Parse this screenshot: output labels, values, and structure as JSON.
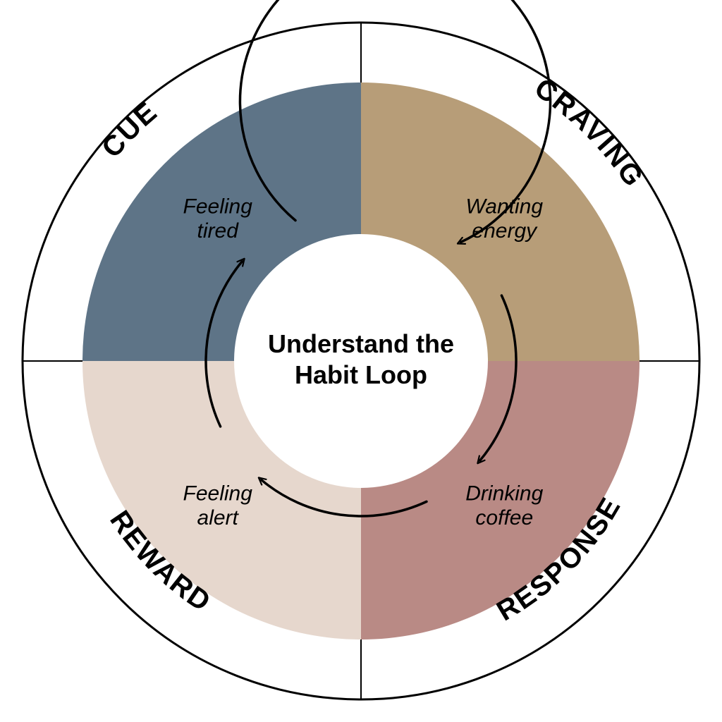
{
  "diagram": {
    "type": "cycle",
    "center_title_line1": "Understand the",
    "center_title_line2": "Habit Loop",
    "center_title_fontsize": 36,
    "outer_label_fontsize": 40,
    "inner_label_fontsize": 30,
    "background_color": "#ffffff",
    "stroke_color": "#000000",
    "outer_ring_stroke_width": 3,
    "divider_stroke_width": 2,
    "arrow_stroke_width": 3.5,
    "outer_radius": 480,
    "ring_outer_radius": 395,
    "ring_inner_radius": 180,
    "segments": [
      {
        "key": "cue",
        "outer_label": "CUE",
        "inner_label_line1": "Feeling",
        "inner_label_line2": "tired",
        "fill": "#5e7487",
        "start_angle_deg": 270,
        "end_angle_deg": 360
      },
      {
        "key": "craving",
        "outer_label": "CRAVING",
        "inner_label_line1": "Wanting",
        "inner_label_line2": "energy",
        "fill": "#b79d78",
        "start_angle_deg": 0,
        "end_angle_deg": 90
      },
      {
        "key": "response",
        "outer_label": "RESPONSE",
        "inner_label_line1": "Drinking",
        "inner_label_line2": "coffee",
        "fill": "#b98a85",
        "start_angle_deg": 90,
        "end_angle_deg": 180
      },
      {
        "key": "reward",
        "outer_label": "REWARD",
        "inner_label_line1": "Feeling",
        "inner_label_line2": "alert",
        "fill": "#e6d7cd",
        "start_angle_deg": 180,
        "end_angle_deg": 270
      }
    ]
  }
}
